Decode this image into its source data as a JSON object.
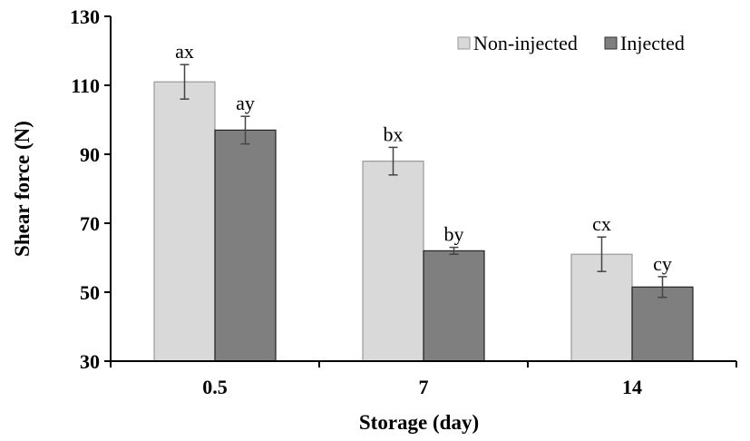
{
  "chart_data": {
    "type": "bar",
    "categories": [
      "0.5",
      "7",
      "14"
    ],
    "series": [
      {
        "name": "Non-injected",
        "color": "#d9d9d9",
        "values": [
          111,
          88,
          61
        ],
        "errors": [
          5,
          4,
          5
        ],
        "labels": [
          "ax",
          "bx",
          "cx"
        ]
      },
      {
        "name": "Injected",
        "color": "#7f7f7f",
        "values": [
          97,
          62,
          51.5
        ],
        "errors": [
          4,
          1,
          3
        ],
        "labels": [
          "ay",
          "by",
          "cy"
        ]
      }
    ],
    "xlabel": "Storage (day)",
    "ylabel": "Shear force (N)",
    "ylim": [
      30,
      130
    ],
    "yticks": [
      "30",
      "50",
      "70",
      "90",
      "110",
      "130"
    ],
    "grid": false,
    "legend": "top-right"
  }
}
